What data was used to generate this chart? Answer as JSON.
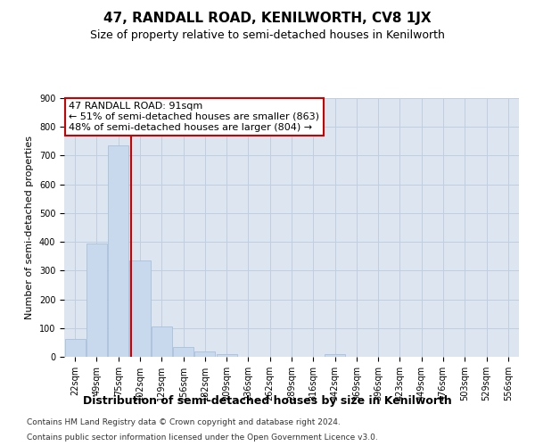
{
  "title": "47, RANDALL ROAD, KENILWORTH, CV8 1JX",
  "subtitle": "Size of property relative to semi-detached houses in Kenilworth",
  "xlabel": "Distribution of semi-detached houses by size in Kenilworth",
  "ylabel": "Number of semi-detached properties",
  "categories": [
    "22sqm",
    "49sqm",
    "75sqm",
    "102sqm",
    "129sqm",
    "156sqm",
    "182sqm",
    "209sqm",
    "236sqm",
    "262sqm",
    "289sqm",
    "316sqm",
    "342sqm",
    "369sqm",
    "396sqm",
    "423sqm",
    "449sqm",
    "476sqm",
    "503sqm",
    "529sqm",
    "556sqm"
  ],
  "values": [
    63,
    395,
    735,
    335,
    107,
    33,
    18,
    10,
    0,
    0,
    0,
    0,
    10,
    0,
    0,
    0,
    0,
    0,
    0,
    0,
    0
  ],
  "bar_color": "#c9d9ed",
  "bar_edge_color": "#a8c0da",
  "annotation_text": "47 RANDALL ROAD: 91sqm\n← 51% of semi-detached houses are smaller (863)\n48% of semi-detached houses are larger (804) →",
  "annotation_box_color": "#ffffff",
  "annotation_box_edge": "#cc0000",
  "annotation_text_color": "#000000",
  "red_line_color": "#cc0000",
  "grid_color": "#c0cfe0",
  "background_color": "#dde6f0",
  "footer_line1": "Contains HM Land Registry data © Crown copyright and database right 2024.",
  "footer_line2": "Contains public sector information licensed under the Open Government Licence v3.0.",
  "ylim": [
    0,
    900
  ],
  "yticks": [
    0,
    100,
    200,
    300,
    400,
    500,
    600,
    700,
    800,
    900
  ],
  "title_fontsize": 11,
  "subtitle_fontsize": 9,
  "xlabel_fontsize": 9,
  "ylabel_fontsize": 8,
  "tick_fontsize": 7,
  "annotation_fontsize": 8,
  "footer_fontsize": 6.5
}
